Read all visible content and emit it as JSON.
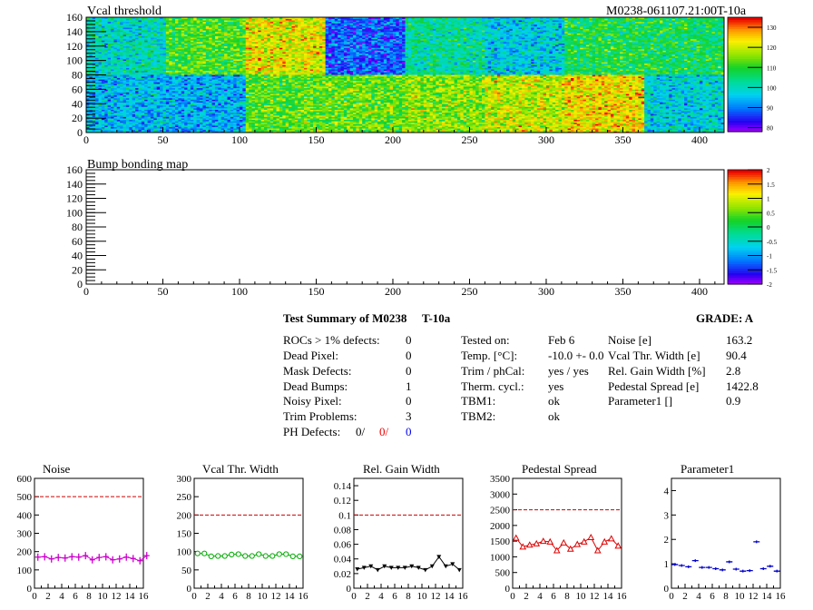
{
  "chart_data": [
    {
      "type": "heatmap",
      "title": "Vcal threshold",
      "subtitle": "M0238-061107.21:00T-10a",
      "xlim": [
        0,
        416
      ],
      "ylim": [
        0,
        160
      ],
      "xticks": [
        0,
        50,
        100,
        150,
        200,
        250,
        300,
        350,
        400
      ],
      "yticks": [
        0,
        20,
        40,
        60,
        80,
        100,
        120,
        140,
        160
      ],
      "z_range": [
        78,
        135
      ],
      "z_ticks": [
        80,
        90,
        100,
        110,
        120,
        130
      ],
      "roc_mean_top": [
        100,
        112,
        122,
        88,
        103,
        97,
        108,
        107
      ],
      "roc_mean_bottom": [
        95,
        94,
        113,
        114,
        116,
        120,
        124,
        98
      ]
    },
    {
      "type": "heatmap",
      "title": "Bump bonding map",
      "xlim": [
        0,
        416
      ],
      "ylim": [
        0,
        160
      ],
      "xticks": [
        0,
        50,
        100,
        150,
        200,
        250,
        300,
        350,
        400
      ],
      "yticks": [
        0,
        20,
        40,
        60,
        80,
        100,
        120,
        140,
        160
      ],
      "z_range": [
        -2,
        2
      ],
      "z_ticks": [
        -2,
        -1.5,
        -1,
        -0.5,
        0,
        0.5,
        1,
        1.5,
        2
      ]
    },
    {
      "type": "line",
      "title": "Noise",
      "color": "#cc00cc",
      "marker": "plus",
      "xlim": [
        0,
        16
      ],
      "ylim": [
        0,
        600
      ],
      "yticks": [
        0,
        100,
        200,
        300,
        400,
        500,
        600
      ],
      "reference_line": 500,
      "values": [
        170,
        172,
        160,
        168,
        165,
        172,
        170,
        178,
        155,
        168,
        172,
        155,
        160,
        170,
        162,
        150,
        178
      ]
    },
    {
      "type": "line",
      "title": "Vcal Thr. Width",
      "color": "#00aa00",
      "marker": "circle",
      "xlim": [
        0,
        16
      ],
      "ylim": [
        0,
        300
      ],
      "yticks": [
        0,
        50,
        100,
        150,
        200,
        250,
        300
      ],
      "reference_line": 200,
      "values": [
        95,
        95,
        87,
        88,
        88,
        92,
        93,
        88,
        88,
        93,
        88,
        88,
        93,
        93,
        87,
        87
      ]
    },
    {
      "type": "line",
      "title": "Rel. Gain Width",
      "color": "#000000",
      "marker": "triangle-down",
      "xlim": [
        0,
        16
      ],
      "ylim": [
        0,
        0.15
      ],
      "yticks": [
        0,
        0.02,
        0.04,
        0.06,
        0.08,
        0.1,
        0.12,
        0.14
      ],
      "reference_line": 0.1,
      "values": [
        0.026,
        0.028,
        0.03,
        0.025,
        0.03,
        0.028,
        0.028,
        0.028,
        0.03,
        0.028,
        0.025,
        0.03,
        0.043,
        0.03,
        0.033,
        0.025
      ]
    },
    {
      "type": "line",
      "title": "Pedestal Spread",
      "color": "#dd0000",
      "marker": "triangle-up",
      "xlim": [
        0,
        16
      ],
      "ylim": [
        0,
        3500
      ],
      "yticks": [
        0,
        500,
        1000,
        1500,
        2000,
        2500,
        3000,
        3500
      ],
      "reference_line": 2500,
      "values": [
        1600,
        1320,
        1380,
        1420,
        1500,
        1480,
        1200,
        1450,
        1250,
        1400,
        1480,
        1620,
        1200,
        1480,
        1580,
        1350
      ]
    },
    {
      "type": "line",
      "title": "Parameter1",
      "color": "#0000cc",
      "marker": "hbar",
      "xlim": [
        0,
        16
      ],
      "ylim": [
        0,
        4.5
      ],
      "yticks": [
        0,
        1,
        2,
        3,
        4
      ],
      "values": [
        0.97,
        0.93,
        0.88,
        1.13,
        0.85,
        0.85,
        0.8,
        0.75,
        1.08,
        0.78,
        0.7,
        0.72,
        1.9,
        0.8,
        0.9,
        0.7
      ]
    }
  ],
  "summary": {
    "title": "Test Summary of M0238",
    "temp_label": "T-10a",
    "grade": "GRADE:  A",
    "defects": [
      {
        "label": "ROCs > 1% defects:",
        "value": "0"
      },
      {
        "label": "Dead Pixel:",
        "value": "0"
      },
      {
        "label": "Mask Defects:",
        "value": "0"
      },
      {
        "label": "Dead Bumps:",
        "value": "1"
      },
      {
        "label": "Noisy Pixel:",
        "value": "0"
      },
      {
        "label": "Trim Problems:",
        "value": "3"
      }
    ],
    "ph_label": "PH Defects:",
    "ph_values": [
      {
        "text": "0/",
        "color": "#000000"
      },
      {
        "text": "0/",
        "color": "#ee0000"
      },
      {
        "text": "0",
        "color": "#0000ee"
      }
    ],
    "conditions": [
      {
        "label": "Tested on:",
        "value": "Feb 6"
      },
      {
        "label": "Temp. [°C]:",
        "value": "-10.0 +- 0.0"
      },
      {
        "label": "Trim / phCal:",
        "value": "yes / yes"
      },
      {
        "label": "Therm. cycl.:",
        "value": "yes"
      },
      {
        "label": "TBM1:",
        "value": "ok"
      },
      {
        "label": "TBM2:",
        "value": "ok"
      }
    ],
    "metrics": [
      {
        "label": "Noise [e]",
        "value": "163.2"
      },
      {
        "label": "Vcal Thr. Width [e]",
        "value": "90.4"
      },
      {
        "label": "Rel. Gain Width [%]",
        "value": "2.8"
      },
      {
        "label": "Pedestal Spread [e]",
        "value": "1422.8"
      },
      {
        "label": "Parameter1 []",
        "value": "0.9"
      }
    ]
  }
}
